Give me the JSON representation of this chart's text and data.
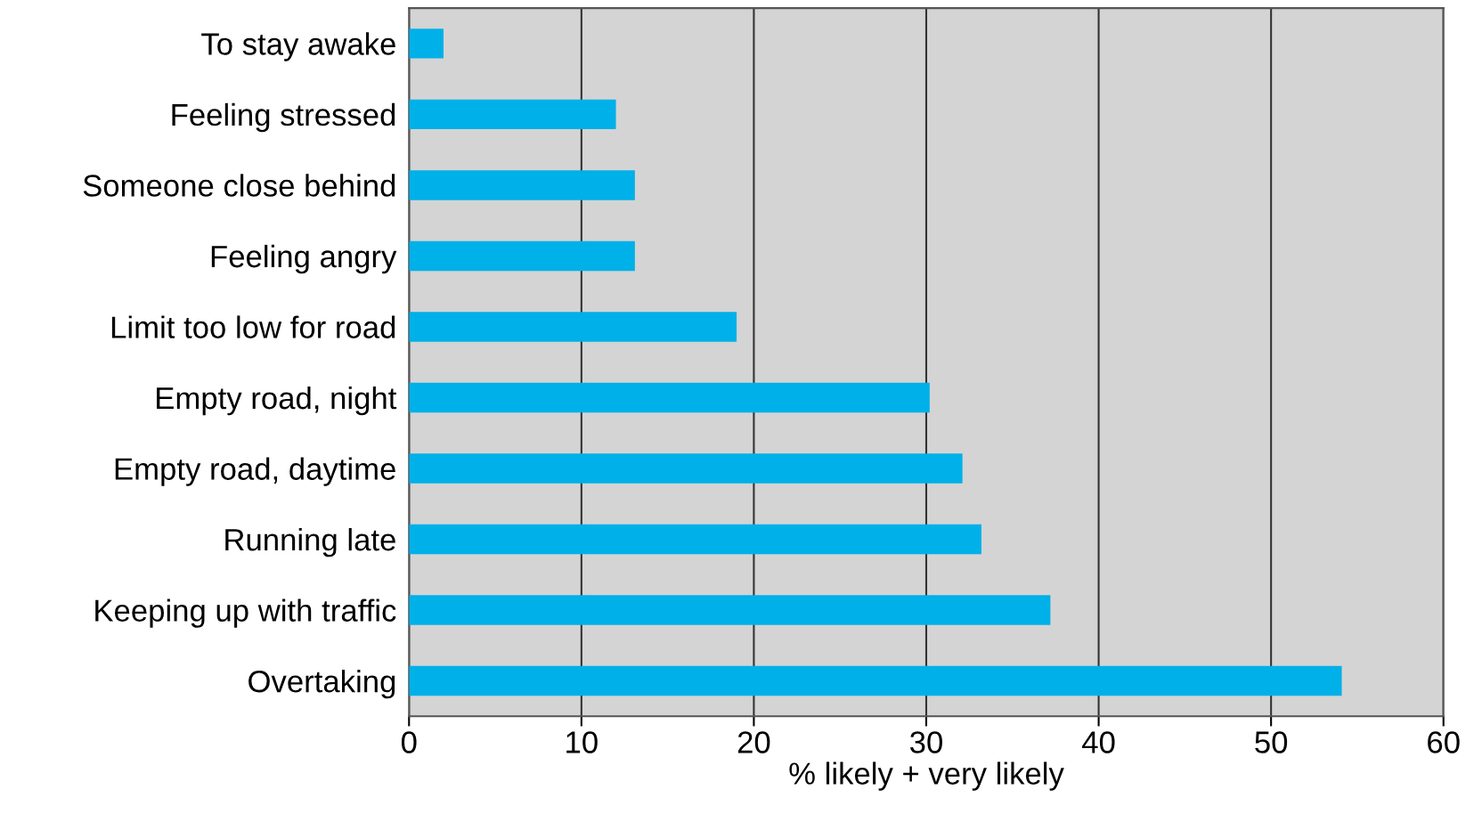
{
  "chart_data": {
    "type": "bar",
    "orientation": "horizontal",
    "xlabel": "% likely + very likely",
    "categories": [
      "To stay awake",
      "Feeling stressed",
      "Someone close behind",
      "Feeling angry",
      "Limit too low for road",
      "Empty road, night",
      "Empty road, daytime",
      "Running late",
      "Keeping up with traffic",
      "Overtaking"
    ],
    "values": [
      2.0,
      12.0,
      13.1,
      13.1,
      19.0,
      30.2,
      32.1,
      33.2,
      37.2,
      54.1
    ],
    "color": "#00b0e8",
    "xlim": [
      0,
      60
    ],
    "xticks": [
      0,
      10,
      20,
      30,
      40,
      50,
      60
    ],
    "grid": "x",
    "legend": false
  }
}
